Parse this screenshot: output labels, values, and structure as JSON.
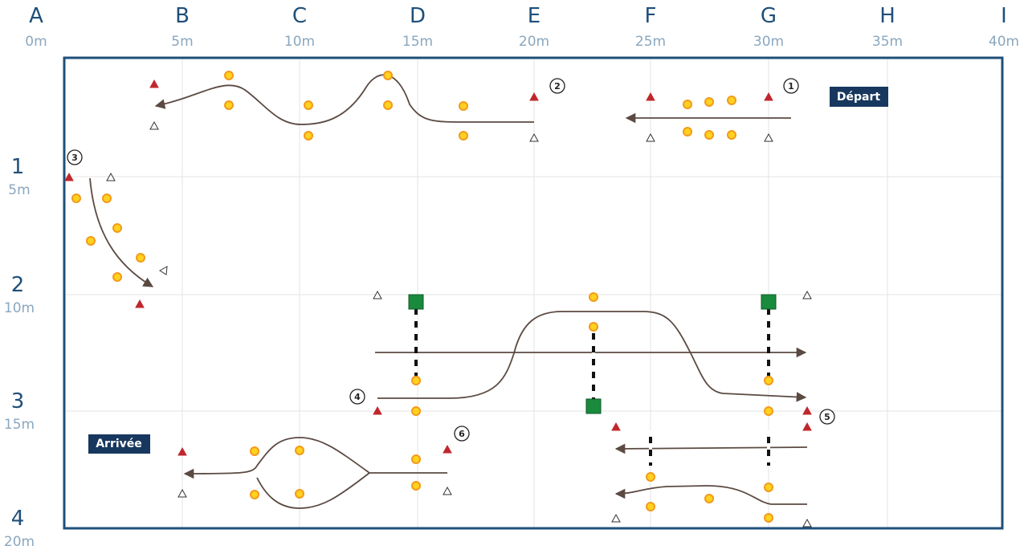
{
  "columns": [
    {
      "letter": "A",
      "distance": "0m"
    },
    {
      "letter": "B",
      "distance": "5m"
    },
    {
      "letter": "C",
      "distance": "10m"
    },
    {
      "letter": "D",
      "distance": "15m"
    },
    {
      "letter": "E",
      "distance": "20m"
    },
    {
      "letter": "F",
      "distance": "25m"
    },
    {
      "letter": "G",
      "distance": "30m"
    },
    {
      "letter": "H",
      "distance": "35m"
    },
    {
      "letter": "I",
      "distance": "40m"
    }
  ],
  "rows": [
    {
      "number": "1",
      "distance": "5m"
    },
    {
      "number": "2",
      "distance": "10m"
    },
    {
      "number": "3",
      "distance": "15m"
    },
    {
      "number": "4",
      "distance": "20m"
    }
  ],
  "labels": {
    "start": "Départ",
    "finish": "Arrivée"
  },
  "markers": [
    "1",
    "2",
    "3",
    "4",
    "5",
    "6"
  ]
}
